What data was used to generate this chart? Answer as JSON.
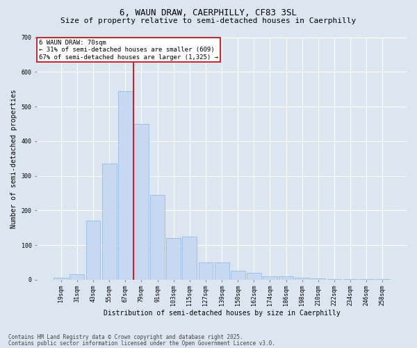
{
  "title_line1": "6, WAUN DRAW, CAERPHILLY, CF83 3SL",
  "title_line2": "Size of property relative to semi-detached houses in Caerphilly",
  "xlabel": "Distribution of semi-detached houses by size in Caerphilly",
  "ylabel": "Number of semi-detached properties",
  "categories": [
    "19sqm",
    "31sqm",
    "43sqm",
    "55sqm",
    "67sqm",
    "79sqm",
    "91sqm",
    "103sqm",
    "115sqm",
    "127sqm",
    "139sqm",
    "150sqm",
    "162sqm",
    "174sqm",
    "186sqm",
    "198sqm",
    "210sqm",
    "222sqm",
    "234sqm",
    "246sqm",
    "258sqm"
  ],
  "values": [
    5,
    15,
    170,
    335,
    545,
    450,
    245,
    120,
    125,
    50,
    50,
    25,
    20,
    10,
    10,
    5,
    3,
    2,
    2,
    1,
    1
  ],
  "bar_color": "#c6d9f0",
  "bar_edge_color": "#8db4e2",
  "vline_x": 4.5,
  "vline_color": "#cc0000",
  "annotation_text": "6 WAUN DRAW: 70sqm\n← 31% of semi-detached houses are smaller (609)\n67% of semi-detached houses are larger (1,325) →",
  "annotation_box_color": "#ffffff",
  "annotation_box_edge_color": "#cc0000",
  "ylim": [
    0,
    700
  ],
  "yticks": [
    0,
    100,
    200,
    300,
    400,
    500,
    600,
    700
  ],
  "background_color": "#dce6f1",
  "grid_color": "#ffffff",
  "footer_line1": "Contains HM Land Registry data © Crown copyright and database right 2025.",
  "footer_line2": "Contains public sector information licensed under the Open Government Licence v3.0.",
  "title_fontsize": 9,
  "subtitle_fontsize": 8,
  "axis_label_fontsize": 7,
  "tick_fontsize": 6,
  "footer_fontsize": 5.5,
  "annotation_fontsize": 6.5
}
